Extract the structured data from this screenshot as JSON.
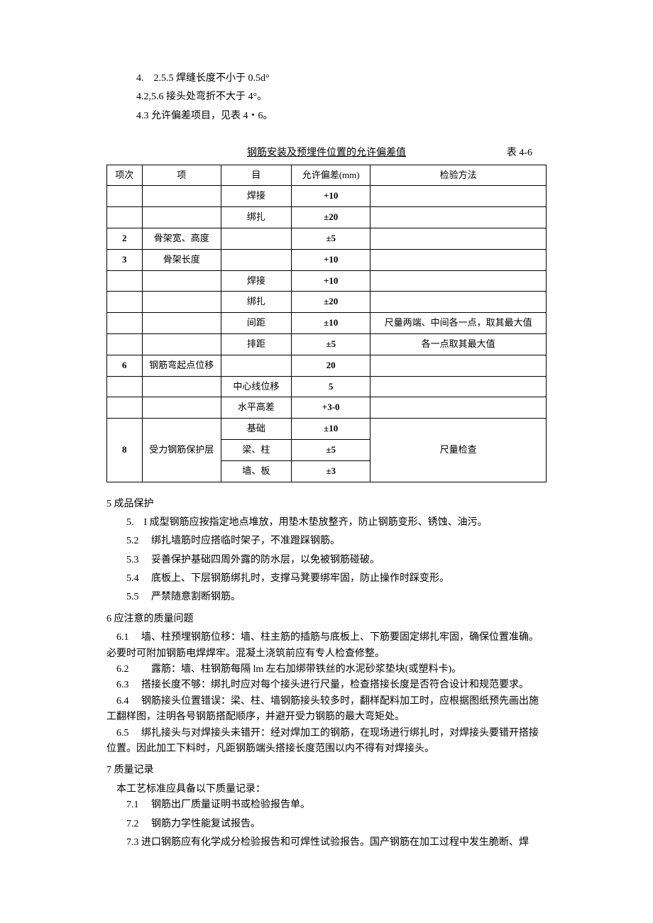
{
  "top_paras": [
    "4.　2.5.5 焊缝长度不小于 0.5d°",
    "4.2,5.6 接头处弯折不大于 4°。",
    "4.3 允许偏差项目，见表 4・6。"
  ],
  "table": {
    "title": "钢筋安装及预埋件位置的允许偏差值",
    "number": "表 4-6",
    "headers": [
      "项次",
      "项",
      "目",
      "允许偏差(mm)",
      "检验方法"
    ],
    "rows": [
      {
        "num": "",
        "item1": "",
        "item2": "焊接",
        "dev": "+10",
        "method": "",
        "bold_dev": true
      },
      {
        "num": "",
        "item1": "",
        "item2": "绑扎",
        "dev": "±20",
        "method": "",
        "bold_dev": true
      },
      {
        "num": "2",
        "item1": "骨架宽、高度",
        "item2": "",
        "dev": "±5",
        "method": "",
        "bold_num": true,
        "bold_dev": true
      },
      {
        "num": "3",
        "item1": "骨架长度",
        "item2": "",
        "dev": "+10",
        "method": "",
        "bold_num": true,
        "bold_dev": true
      },
      {
        "num": "",
        "item1": "",
        "item2": "焊接",
        "dev": "+10",
        "method": "",
        "bold_dev": true
      },
      {
        "num": "",
        "item1": "",
        "item2": "绑扎",
        "dev": "±20",
        "method": "",
        "bold_dev": true
      },
      {
        "num": "",
        "item1": "",
        "item2": "间距",
        "dev": "±10",
        "method": "尺量两端、中间各一点，取其最大值",
        "bold_dev": true
      },
      {
        "num": "",
        "item1": "",
        "item2": "排距",
        "dev": "±5",
        "method": "各一点取其最大值",
        "bold_dev": true
      },
      {
        "num": "6",
        "item1": "钢筋弯起点位移",
        "item2": "",
        "dev": "20",
        "method": "",
        "bold_num": true,
        "bold_dev": true
      },
      {
        "num": "",
        "item1": "",
        "item2": "中心线位移",
        "dev": "5",
        "method": "",
        "bold_dev": true
      },
      {
        "num": "",
        "item1": "",
        "item2": "水平高差",
        "dev": "+3-0",
        "method": "",
        "bold_dev": true
      }
    ],
    "group8": {
      "num": "8",
      "item1": "受力钢筋保护层",
      "subs": [
        {
          "item2": "基础",
          "dev": "±10"
        },
        {
          "item2": "梁、柱",
          "dev": "±5"
        },
        {
          "item2": "墙、板",
          "dev": "±3"
        }
      ],
      "method": "尺量检查"
    }
  },
  "section5": {
    "heading": "5 成品保护",
    "items": [
      "5.　I 成型钢筋应按指定地点堆放，用垫木垫放整齐，防止钢筋变形、锈蚀、油污。",
      "5.2　 绑扎墙筋时应搭临时架子，不准蹬踩钢筋。",
      "5.3　 妥善保护基础四周外露的防水层，以免被钢筋碰破。",
      "5.4　 底板上、下层钢筋绑扎时，支撑马凳要绑牢固，防止操作时踩变形。",
      "5.5　 严禁随意割断钢筋。"
    ]
  },
  "section6": {
    "heading": "6 应注意的质量问题",
    "items": [
      "　6.1　 墙、柱预埋钢筋位移：墙、柱主筋的插筋与底板上、下筋要固定绑扎牢固，确保位置准确。必要时可附加钢筋电焊焊牢。混凝土浇筑前应有专人检查修整。",
      "　6.2　　 露筋：墙、柱钢筋每隔 lm 左右加绑带铁丝的水泥砂浆垫块(或塑料卡)。",
      "　6.3　 搭接长度不够：绑扎时应对每个接头进行尺量，检查搭接长度是否符合设计和规范要求。",
      "　6.4　 钢筋接头位置错误：梁、柱、墙钢筋接头较多时，翻样配料加工时，应根据图纸预先画出施工翻样图，注明各号钢筋搭配顺序，并避开受力钢筋的最大弯矩处。",
      "　6.5　 绑扎接头与对焊接头未错开：经对焊加工的钢筋，在现场进行绑扎时，对焊接头要错开搭接位置。因此加工下料时，凡距钢筋端头搭接长度范围以内不得有对焊接头。"
    ]
  },
  "section7": {
    "heading": "7 质量记录",
    "intro": "　本工艺标准应具备以下质量记录：",
    "items": [
      "7.1　 钢筋出厂质量证明书或检验报告单。",
      "7.2　 钢筋力学性能复试报告。",
      "7.3 进口钢筋应有化学成分检验报告和可焊性试验报告。国产钢筋在加工过程中发生脆断、焊"
    ]
  }
}
